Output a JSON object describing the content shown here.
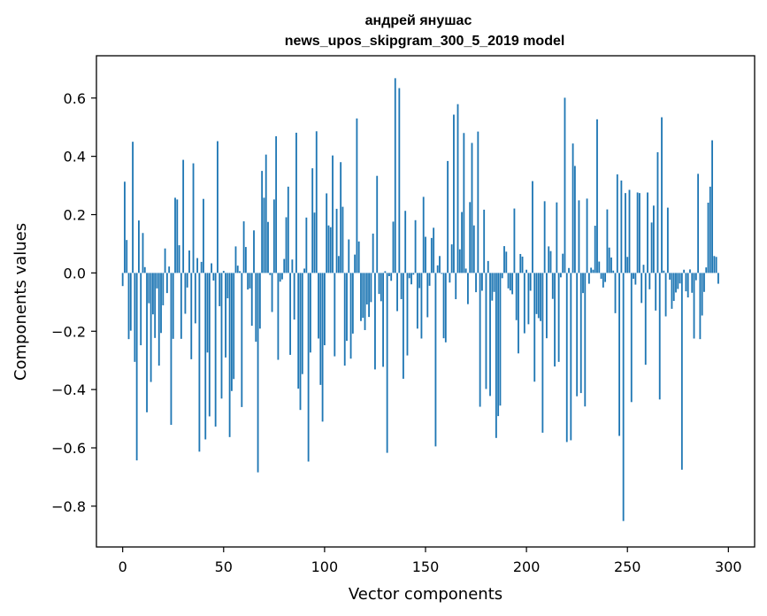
{
  "chart_data": {
    "type": "bar",
    "title_line1": "андрей янушас",
    "title_line2": "news_upos_skipgram_300_5_2019 model",
    "xlabel": "Vector components",
    "ylabel": "Components values",
    "xlim": [
      -13,
      313
    ],
    "ylim": [
      -0.94,
      0.745
    ],
    "x_ticks": [
      0,
      50,
      100,
      150,
      200,
      250,
      300
    ],
    "x_tick_labels": [
      "0",
      "50",
      "100",
      "150",
      "200",
      "250",
      "300"
    ],
    "y_ticks": [
      0.6,
      0.4,
      0.2,
      0.0,
      -0.2,
      -0.4,
      -0.6,
      -0.8
    ],
    "y_tick_labels": [
      "0.6",
      "0.4",
      "0.2",
      "0.0",
      "−0.2",
      "−0.4",
      "−0.6",
      "−0.8"
    ],
    "bar_color": "#1f77b4",
    "values": [
      -0.045,
      0.313,
      0.113,
      -0.227,
      -0.198,
      0.45,
      -0.305,
      -0.643,
      0.18,
      -0.248,
      0.137,
      0.02,
      -0.478,
      -0.104,
      -0.374,
      -0.142,
      -0.223,
      -0.053,
      -0.318,
      -0.206,
      -0.111,
      0.084,
      -0.069,
      0.022,
      -0.521,
      -0.226,
      0.258,
      0.252,
      0.095,
      -0.226,
      0.388,
      -0.14,
      -0.05,
      0.077,
      -0.296,
      0.376,
      -0.173,
      0.051,
      -0.613,
      0.038,
      0.254,
      -0.571,
      -0.273,
      -0.492,
      0.033,
      -0.026,
      -0.527,
      0.452,
      -0.114,
      -0.431,
      0.007,
      -0.29,
      -0.087,
      -0.563,
      -0.405,
      -0.364,
      0.091,
      0.025,
      0.006,
      -0.46,
      0.177,
      0.089,
      -0.057,
      -0.053,
      -0.181,
      0.146,
      -0.236,
      -0.684,
      -0.191,
      0.35,
      0.258,
      0.406,
      0.175,
      -0.007,
      -0.134,
      0.252,
      0.469,
      -0.298,
      -0.03,
      -0.022,
      0.048,
      0.191,
      0.296,
      -0.281,
      0.046,
      -0.16,
      0.481,
      -0.397,
      -0.47,
      -0.347,
      0.015,
      0.19,
      -0.647,
      -0.273,
      0.359,
      0.207,
      0.486,
      -0.225,
      -0.384,
      -0.51,
      -0.248,
      0.273,
      0.163,
      0.157,
      0.403,
      -0.286,
      0.22,
      0.058,
      0.38,
      0.227,
      -0.318,
      -0.233,
      0.115,
      -0.294,
      -0.208,
      0.063,
      0.53,
      0.108,
      -0.165,
      -0.154,
      -0.196,
      -0.108,
      -0.151,
      -0.1,
      0.135,
      -0.331,
      0.333,
      -0.072,
      -0.097,
      -0.322,
      0.006,
      -0.617,
      -0.011,
      -0.027,
      0.176,
      0.668,
      -0.131,
      0.634,
      -0.09,
      -0.363,
      0.213,
      -0.283,
      -0.018,
      -0.039,
      -0.006,
      0.181,
      -0.191,
      -0.052,
      -0.225,
      0.261,
      0.124,
      -0.152,
      -0.044,
      0.12,
      0.155,
      -0.595,
      0.026,
      0.058,
      -0.003,
      -0.224,
      -0.238,
      0.384,
      -0.033,
      0.098,
      0.543,
      -0.09,
      0.579,
      0.081,
      0.209,
      0.48,
      0.015,
      -0.107,
      0.243,
      0.446,
      0.163,
      -0.066,
      0.485,
      -0.459,
      -0.061,
      0.217,
      -0.398,
      0.041,
      -0.422,
      -0.095,
      -0.065,
      -0.566,
      -0.491,
      -0.455,
      -0.018,
      0.092,
      0.073,
      -0.053,
      -0.06,
      -0.073,
      0.221,
      -0.162,
      -0.276,
      0.065,
      0.056,
      -0.207,
      0.011,
      -0.176,
      -0.061,
      0.315,
      -0.373,
      -0.141,
      -0.155,
      -0.165,
      -0.548,
      0.246,
      -0.224,
      0.091,
      0.075,
      -0.089,
      -0.321,
      0.242,
      -0.305,
      -0.015,
      0.066,
      0.601,
      -0.58,
      0.017,
      -0.574,
      0.444,
      0.367,
      -0.423,
      0.249,
      -0.412,
      -0.069,
      -0.458,
      0.255,
      -0.037,
      0.018,
      0.011,
      0.162,
      0.527,
      0.039,
      -0.02,
      -0.05,
      -0.031,
      0.218,
      0.087,
      0.053,
      0.008,
      -0.138,
      0.338,
      -0.559,
      0.317,
      -0.851,
      0.274,
      0.055,
      0.285,
      -0.443,
      -0.02,
      -0.04,
      0.276,
      0.274,
      -0.103,
      0.028,
      -0.315,
      0.276,
      -0.056,
      0.173,
      0.231,
      -0.129,
      0.414,
      -0.434,
      0.534,
      0.008,
      -0.149,
      0.224,
      -0.023,
      -0.123,
      -0.096,
      -0.067,
      -0.055,
      -0.036,
      -0.675,
      0.011,
      -0.063,
      -0.084,
      0.012,
      -0.068,
      -0.225,
      -0.025,
      0.34,
      -0.227,
      -0.146,
      -0.065,
      0.019,
      0.241,
      0.296,
      0.455,
      0.058,
      0.055,
      -0.037,
      0.0,
      0.0,
      0.0,
      0.0
    ]
  }
}
